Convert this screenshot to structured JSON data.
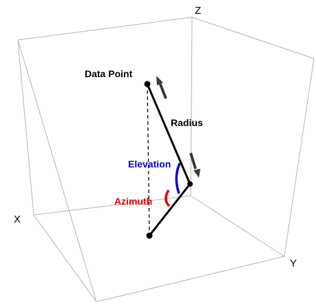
{
  "axes": {
    "x_label": "X",
    "y_label": "Y",
    "z_label": "Z"
  },
  "annotations": {
    "data_point": "Data Point",
    "radius": "Radius",
    "elevation": "Elevation",
    "azimuth": "Azimuth"
  },
  "colors": {
    "box": "#b3b3b3",
    "line": "#000000",
    "arrow": "#3a3a3a",
    "elevation": "#0000cc",
    "azimuth": "#e00000"
  }
}
